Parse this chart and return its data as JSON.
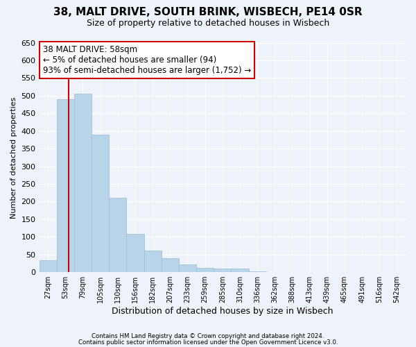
{
  "title": "38, MALT DRIVE, SOUTH BRINK, WISBECH, PE14 0SR",
  "subtitle": "Size of property relative to detached houses in Wisbech",
  "xlabel": "Distribution of detached houses by size in Wisbech",
  "ylabel": "Number of detached properties",
  "bar_labels": [
    "27sqm",
    "53sqm",
    "79sqm",
    "105sqm",
    "130sqm",
    "156sqm",
    "182sqm",
    "207sqm",
    "233sqm",
    "259sqm",
    "285sqm",
    "310sqm",
    "336sqm",
    "362sqm",
    "388sqm",
    "413sqm",
    "439sqm",
    "465sqm",
    "491sqm",
    "516sqm",
    "542sqm"
  ],
  "bar_values": [
    33,
    490,
    505,
    390,
    210,
    108,
    62,
    40,
    22,
    13,
    10,
    10,
    2,
    0,
    0,
    0,
    0,
    0,
    0,
    1,
    0
  ],
  "bar_color": "#b8d4e8",
  "bar_edge_color": "#9bbcd4",
  "annotation_title": "38 MALT DRIVE: 58sqm",
  "annotation_line1": "← 5% of detached houses are smaller (94)",
  "annotation_line2": "93% of semi-detached houses are larger (1,752) →",
  "vline_color": "#cc0000",
  "vline_x": 1.18,
  "ylim": [
    0,
    650
  ],
  "yticks": [
    0,
    50,
    100,
    150,
    200,
    250,
    300,
    350,
    400,
    450,
    500,
    550,
    600,
    650
  ],
  "footer1": "Contains HM Land Registry data © Crown copyright and database right 2024.",
  "footer2": "Contains public sector information licensed under the Open Government Licence v3.0.",
  "bg_color": "#eef2fb",
  "plot_bg_color": "#eef2fb",
  "annotation_box_color": "#ffffff",
  "annotation_box_edge": "#cc0000",
  "grid_color": "#ffffff",
  "title_fontsize": 11,
  "subtitle_fontsize": 9,
  "annotation_fontsize": 8.5,
  "xlabel_fontsize": 9,
  "ylabel_fontsize": 8
}
